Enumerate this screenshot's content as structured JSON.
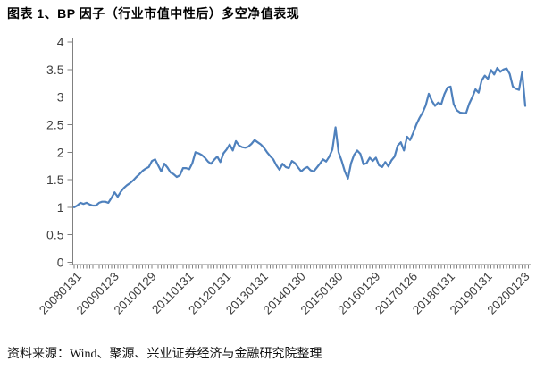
{
  "title": "图表 1、BP 因子（行业市值中性后）多空净值表现",
  "source": "资料来源：Wind、聚源、兴业证券经济与金融研究院整理",
  "colors": {
    "line": "#4F81BD",
    "axis": "#808080",
    "tick_label": "#3f3f3f",
    "title_text": "#000000",
    "source_text": "#111111"
  },
  "chart_data": {
    "type": "line",
    "title": "图表 1、BP 因子（行业市值中性后）多空净值表现",
    "xlabel": "",
    "ylabel": "",
    "ylim": [
      0,
      4
    ],
    "y_ticks": [
      0,
      0.5,
      1,
      1.5,
      2,
      2.5,
      3,
      3.5,
      4
    ],
    "grid": false,
    "legend": "none",
    "x_frequency": "monthly",
    "x_tick_interval": 12,
    "x_tick_labels": [
      "20080131",
      "20090123",
      "20100129",
      "20110131",
      "20120131",
      "20130131",
      "20140130",
      "20150130",
      "20160129",
      "20170126",
      "20180131",
      "20190131",
      "20200123"
    ],
    "series": [
      {
        "values": [
          1.0,
          1.03,
          1.08,
          1.06,
          1.08,
          1.05,
          1.03,
          1.03,
          1.08,
          1.1,
          1.1,
          1.08,
          1.17,
          1.27,
          1.19,
          1.28,
          1.35,
          1.4,
          1.44,
          1.49,
          1.55,
          1.6,
          1.66,
          1.7,
          1.73,
          1.84,
          1.87,
          1.76,
          1.65,
          1.79,
          1.72,
          1.63,
          1.6,
          1.55,
          1.58,
          1.71,
          1.71,
          1.69,
          1.8,
          2.0,
          1.98,
          1.95,
          1.9,
          1.83,
          1.79,
          1.86,
          1.92,
          1.82,
          1.98,
          2.05,
          2.14,
          2.03,
          2.2,
          2.12,
          2.09,
          2.08,
          2.1,
          2.15,
          2.22,
          2.18,
          2.14,
          2.08,
          2.0,
          1.93,
          1.87,
          1.76,
          1.68,
          1.79,
          1.73,
          1.71,
          1.84,
          1.8,
          1.72,
          1.65,
          1.7,
          1.73,
          1.67,
          1.65,
          1.72,
          1.79,
          1.87,
          1.83,
          1.92,
          2.05,
          2.45,
          2.0,
          1.84,
          1.65,
          1.52,
          1.8,
          1.95,
          2.03,
          1.97,
          1.78,
          1.8,
          1.9,
          1.84,
          1.9,
          1.76,
          1.73,
          1.82,
          1.74,
          1.85,
          1.92,
          2.12,
          2.18,
          2.03,
          2.28,
          2.22,
          2.35,
          2.5,
          2.62,
          2.72,
          2.85,
          3.06,
          2.93,
          2.84,
          2.9,
          2.87,
          3.05,
          3.17,
          3.19,
          2.87,
          2.76,
          2.72,
          2.71,
          2.71,
          2.88,
          3.0,
          3.14,
          3.08,
          3.3,
          3.39,
          3.33,
          3.49,
          3.41,
          3.53,
          3.46,
          3.5,
          3.52,
          3.42,
          3.19,
          3.15,
          3.13,
          3.45,
          2.84
        ]
      }
    ]
  }
}
